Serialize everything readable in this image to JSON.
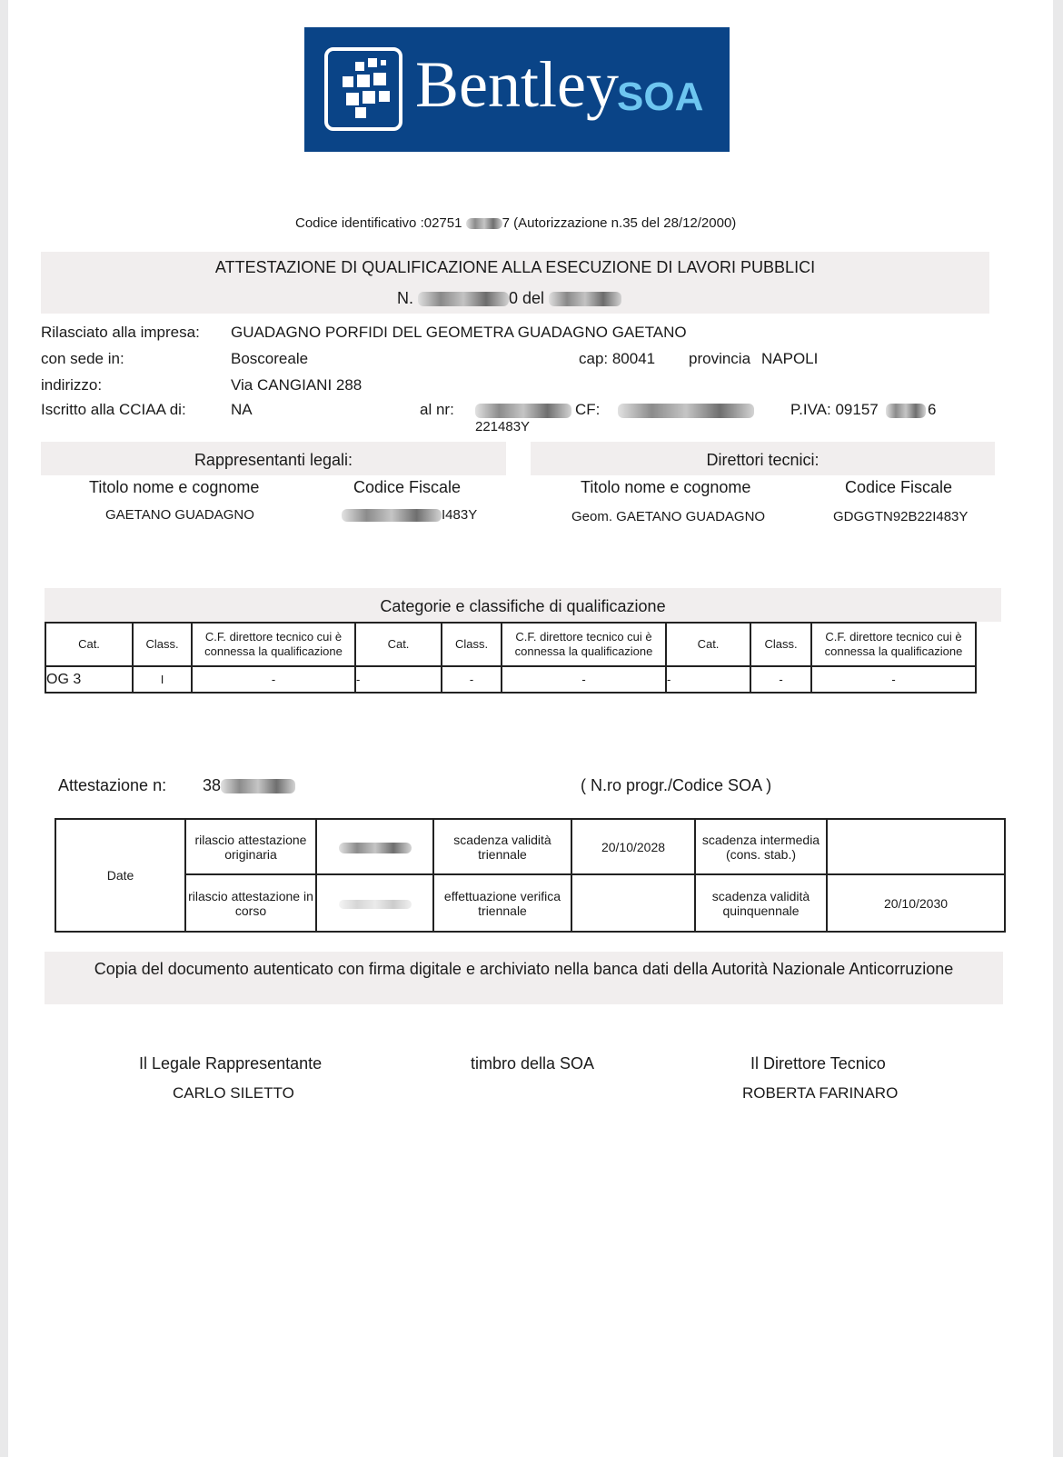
{
  "logo": {
    "brand": "Bentley",
    "suffix": "SOA",
    "bg": "#0a4487"
  },
  "header": {
    "codice": "Codice identificativo :02751",
    "autorizzazione": "7 (Autorizzazione n.35 del 28/12/2000)",
    "title": "ATTESTAZIONE DI QUALIFICAZIONE ALLA ESECUZIONE DI LAVORI PUBBLICI",
    "number_prefix": "N.",
    "number_mid": "0 del"
  },
  "company": {
    "l_impresa": "Rilasciato alla impresa:",
    "impresa": "GUADAGNO PORFIDI DEL GEOMETRA GUADAGNO GAETANO",
    "l_sede": "con sede in:",
    "sede": "Boscoreale",
    "cap": "cap: 80041",
    "l_provincia": "provincia",
    "provincia": "NAPOLI",
    "l_indirizzo": "indirizzo:",
    "indirizzo": "Via CANGIANI 288",
    "l_ccia": "Iscritto alla CCIAA di:",
    "ccia": "NA",
    "l_nr": "al nr:",
    "nr_tail": "221483Y",
    "l_cf": "CF:",
    "piva": "P.IVA: 09157",
    "piva_tail": "6"
  },
  "rappresentanti": {
    "title": "Rappresentanti legali:",
    "col1": "Titolo nome e cognome",
    "col2": "Codice Fiscale",
    "name": "GAETANO GUADAGNO",
    "cf_tail": "I483Y"
  },
  "direttori": {
    "title": "Direttori tecnici:",
    "col1": "Titolo nome e cognome",
    "col2": "Codice Fiscale",
    "name": "Geom. GAETANO GUADAGNO",
    "cf": "GDGGTN92B22I483Y"
  },
  "categorie": {
    "title": "Categorie e classifiche di qualificazione",
    "h_cat": "Cat.",
    "h_class": "Class.",
    "h_cf": "C.F. direttore tecnico cui è connessa la qualificazione",
    "row": [
      "OG 3",
      "I",
      "-",
      "-",
      "-",
      "-",
      "-",
      "-",
      "-"
    ]
  },
  "attestazione": {
    "label": "Attestazione n:",
    "num": "38",
    "note": "( N.ro progr./Codice SOA )"
  },
  "date": {
    "label": "Date",
    "rilascio_orig": "rilascio attestazione originaria",
    "scad_tri": "scadenza validità triennale",
    "scad_tri_val": "20/10/2028",
    "scad_int": "scadenza intermedia (cons. stab.)",
    "rilascio_corso": "rilascio attestazione in corso",
    "verifica": "effettuazione verifica triennale",
    "scad_quin": "scadenza validità quinquennale",
    "scad_quin_val": "20/10/2030"
  },
  "copia": "Copia del documento autenticato con firma digitale e archiviato nella banca dati della Autorità Nazionale Anticorruzione",
  "firme": {
    "legale_label": "Il Legale Rappresentante",
    "legale": "CARLO SILETTO",
    "timbro": "timbro della SOA",
    "direttore_label": "Il Direttore Tecnico",
    "direttore": "ROBERTA FARINARO"
  }
}
